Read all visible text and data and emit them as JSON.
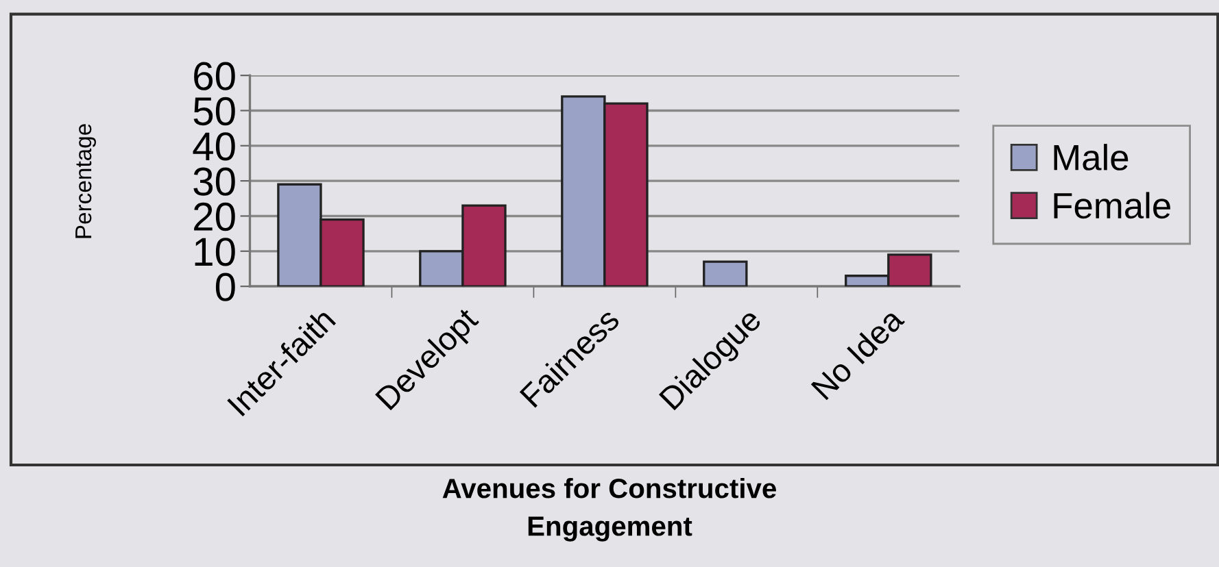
{
  "chart_data": {
    "type": "bar",
    "title": "Avenues for Constructive\nEngagement",
    "ylabel": "Percentage",
    "categories": [
      "Inter-faith",
      "Developt",
      "Fairness",
      "Dialogue",
      "No Idea"
    ],
    "series": [
      {
        "name": "Male",
        "color": "#9aa3c6",
        "values": [
          29,
          10,
          54,
          7,
          3
        ]
      },
      {
        "name": "Female",
        "color": "#a52a55",
        "values": [
          19,
          23,
          52,
          null,
          9
        ]
      }
    ],
    "ylim": [
      0,
      60
    ],
    "yticks": [
      0,
      10,
      20,
      30,
      40,
      50,
      60
    ],
    "grid": "y",
    "legend": "right"
  }
}
